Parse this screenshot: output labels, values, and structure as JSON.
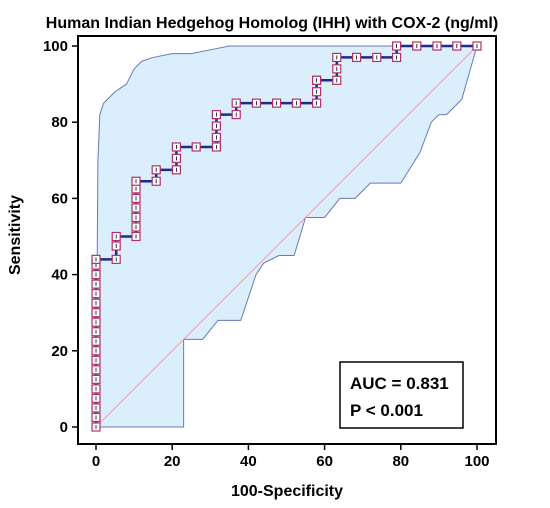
{
  "chart_data": {
    "type": "line",
    "title": "Human Indian Hedgehog Homolog (IHH) with COX-2 (ng/ml)",
    "xlabel": "100-Specificity",
    "ylabel": "Sensitivity",
    "xlim": [
      0,
      100
    ],
    "ylim": [
      0,
      100
    ],
    "xticks": [
      "0",
      "20",
      "40",
      "60",
      "80",
      "100"
    ],
    "yticks": [
      "0",
      "20",
      "40",
      "60",
      "80",
      "100"
    ],
    "grid": false,
    "colors": {
      "roc": "#1f2a8a",
      "ci_fill": "#daeefb",
      "ci_line": "#6a7ab8",
      "marker": "#b0306a",
      "reference": "#e8a0b8"
    },
    "annotation": {
      "auc": "AUC = 0.831",
      "p": "P < 0.001"
    },
    "series": [
      {
        "role": "roc",
        "x": [
          0,
          0,
          0,
          0,
          0,
          0,
          0,
          0,
          0,
          0,
          0,
          0,
          0,
          0,
          0,
          0,
          0,
          0,
          0,
          5.3,
          5.3,
          5.3,
          10.5,
          10.5,
          10.5,
          10.5,
          10.5,
          10.5,
          10.5,
          15.8,
          15.8,
          21.1,
          21.1,
          21.1,
          26.3,
          31.6,
          31.6,
          31.6,
          31.6,
          36.8,
          36.8,
          42.1,
          47.4,
          52.6,
          57.9,
          57.9,
          57.9,
          57.9,
          63.2,
          63.2,
          63.2,
          68.4,
          73.7,
          78.9,
          78.9,
          84.2,
          89.5,
          94.7,
          100
        ],
        "y": [
          0,
          2.5,
          5,
          7.5,
          10,
          12.5,
          15,
          17.5,
          20,
          22.5,
          25,
          27.5,
          30,
          32.5,
          35,
          37.5,
          40,
          42.5,
          44,
          44,
          47.5,
          50,
          50,
          52.5,
          55,
          57.5,
          60,
          62.5,
          64.5,
          64.5,
          67.5,
          67.5,
          70.5,
          73.5,
          73.5,
          73.5,
          76,
          79,
          82,
          82,
          85,
          85,
          85,
          85,
          85,
          88,
          91,
          91,
          91,
          94,
          97,
          97,
          97,
          97,
          100,
          100,
          100,
          100,
          100
        ]
      },
      {
        "role": "ci-upper",
        "x": [
          0,
          0.5,
          1,
          2,
          3,
          5,
          8,
          10,
          12,
          15,
          20,
          25,
          30,
          35,
          40,
          50,
          60,
          70,
          80,
          90,
          100
        ],
        "y": [
          0,
          70,
          82,
          85,
          86,
          88,
          90,
          94,
          96,
          97,
          98,
          98,
          99,
          100,
          100,
          100,
          100,
          100,
          100,
          100,
          100
        ]
      },
      {
        "role": "ci-lower",
        "x": [
          0,
          22,
          23,
          23,
          28,
          32,
          38,
          42,
          44,
          48,
          52,
          55,
          60,
          64,
          68,
          72,
          78,
          80,
          85,
          88,
          90,
          92,
          96,
          100
        ],
        "y": [
          0,
          0,
          0,
          23,
          23,
          28,
          28,
          40,
          43,
          45,
          45,
          55,
          55,
          60,
          60,
          64,
          64,
          64,
          72,
          80,
          82,
          82,
          86,
          100
        ]
      }
    ]
  }
}
